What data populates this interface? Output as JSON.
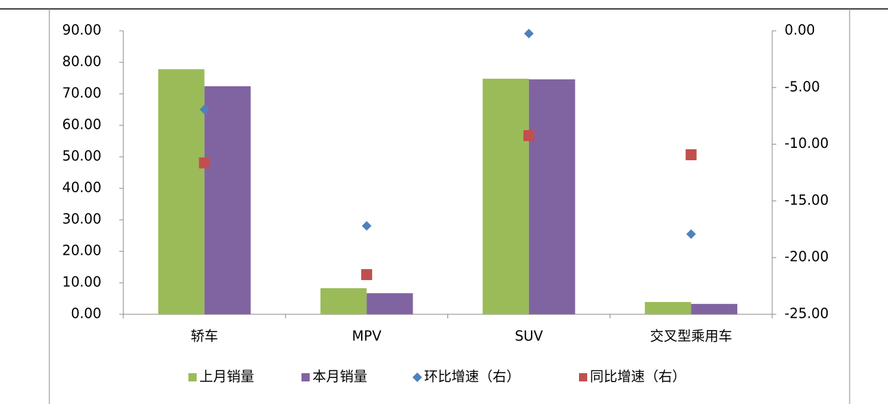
{
  "chart_data": {
    "type": "bar",
    "categories": [
      "轿车",
      "MPV",
      "SUV",
      "交叉型乘用车"
    ],
    "series": [
      {
        "name": "上月销量",
        "color": "#9bbb59",
        "type": "bar",
        "values": [
          77.8,
          8.3,
          74.8,
          3.9
        ]
      },
      {
        "name": "本月销量",
        "color": "#8064a2",
        "type": "bar",
        "values": [
          72.4,
          6.7,
          74.6,
          3.3
        ]
      },
      {
        "name": "环比增速（右）",
        "color": "#4f81bd",
        "type": "diamond",
        "axis": "y2",
        "values": [
          -6.94,
          -17.2,
          -0.24,
          -17.93
        ]
      },
      {
        "name": "同比增速（右）",
        "color": "#c0504d",
        "type": "square",
        "axis": "y2",
        "values": [
          -11.65,
          -21.5,
          -9.24,
          -10.93
        ]
      }
    ],
    "ylim": [
      0,
      90
    ],
    "yticks": [
      {
        "value": 0,
        "label": "0.00"
      },
      {
        "value": 10,
        "label": "10.00"
      },
      {
        "value": 20,
        "label": "20.00"
      },
      {
        "value": 30,
        "label": "30.00"
      },
      {
        "value": 40,
        "label": "40.00"
      },
      {
        "value": 50,
        "label": "50.00"
      },
      {
        "value": 60,
        "label": "60.00"
      },
      {
        "value": 70,
        "label": "70.00"
      },
      {
        "value": 80,
        "label": "80.00"
      },
      {
        "value": 90,
        "label": "90.00"
      }
    ],
    "y2lim": [
      -25,
      0
    ],
    "y2ticks": [
      {
        "value": -25,
        "label": "-25.00"
      },
      {
        "value": -20,
        "label": "-20.00"
      },
      {
        "value": -15,
        "label": "-15.00"
      },
      {
        "value": -10,
        "label": "-10.00"
      },
      {
        "value": -5,
        "label": "-5.00"
      },
      {
        "value": 0,
        "label": "0.00"
      }
    ],
    "legend": "bottom"
  }
}
